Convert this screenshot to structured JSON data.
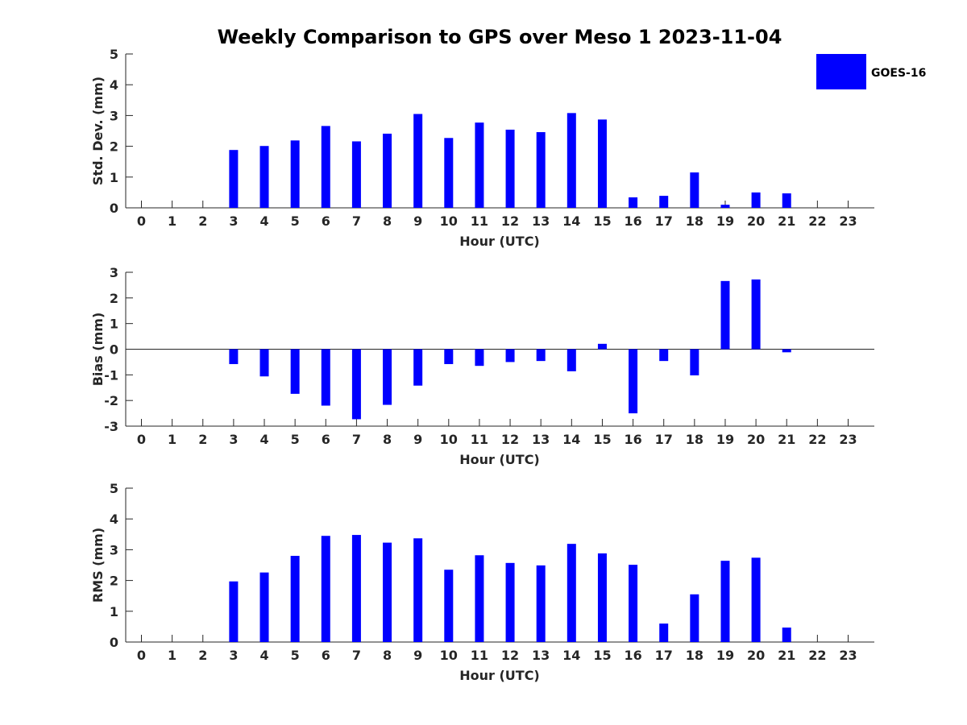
{
  "chart_data": [
    {
      "type": "bar",
      "title": "Weekly Comparison to GPS over Meso 1 2023-11-04",
      "xlabel": "Hour (UTC)",
      "ylabel": "Std. Dev. (mm)",
      "categories": [
        "0",
        "1",
        "2",
        "3",
        "4",
        "5",
        "6",
        "7",
        "8",
        "9",
        "10",
        "11",
        "12",
        "13",
        "14",
        "15",
        "16",
        "17",
        "18",
        "19",
        "20",
        "21",
        "22",
        "23"
      ],
      "ylim": [
        0,
        5
      ],
      "yticks": [
        "0",
        "1",
        "2",
        "3",
        "4",
        "5"
      ],
      "series": [
        {
          "name": "GOES-16",
          "color": "#0000ff",
          "values": [
            null,
            null,
            null,
            1.88,
            2.01,
            2.19,
            2.66,
            2.16,
            2.41,
            3.05,
            2.27,
            2.77,
            2.54,
            2.46,
            3.08,
            2.87,
            0.34,
            0.39,
            1.15,
            0.1,
            0.5,
            0.47,
            null,
            null
          ]
        }
      ],
      "legend": "top-right"
    },
    {
      "type": "bar",
      "xlabel": "Hour (UTC)",
      "ylabel": "Bias (mm)",
      "categories": [
        "0",
        "1",
        "2",
        "3",
        "4",
        "5",
        "6",
        "7",
        "8",
        "9",
        "10",
        "11",
        "12",
        "13",
        "14",
        "15",
        "16",
        "17",
        "18",
        "19",
        "20",
        "21",
        "22",
        "23"
      ],
      "ylim": [
        -3,
        3
      ],
      "yticks": [
        "-3",
        "-2",
        "-1",
        "0",
        "1",
        "2",
        "3"
      ],
      "zero_line": true,
      "series": [
        {
          "name": "GOES-16",
          "color": "#0000ff",
          "values": [
            null,
            null,
            null,
            -0.58,
            -1.06,
            -1.74,
            -2.2,
            -2.73,
            -2.17,
            -1.42,
            -0.58,
            -0.65,
            -0.5,
            -0.46,
            -0.86,
            0.21,
            -2.5,
            -0.46,
            -1.02,
            2.66,
            2.72,
            -0.12,
            null,
            null
          ]
        }
      ]
    },
    {
      "type": "bar",
      "xlabel": "Hour (UTC)",
      "ylabel": "RMS (mm)",
      "categories": [
        "0",
        "1",
        "2",
        "3",
        "4",
        "5",
        "6",
        "7",
        "8",
        "9",
        "10",
        "11",
        "12",
        "13",
        "14",
        "15",
        "16",
        "17",
        "18",
        "19",
        "20",
        "21",
        "22",
        "23"
      ],
      "ylim": [
        0,
        5
      ],
      "yticks": [
        "0",
        "1",
        "2",
        "3",
        "4",
        "5"
      ],
      "series": [
        {
          "name": "GOES-16",
          "color": "#0000ff",
          "values": [
            null,
            null,
            null,
            1.97,
            2.26,
            2.8,
            3.45,
            3.48,
            3.23,
            3.37,
            2.35,
            2.82,
            2.57,
            2.49,
            3.19,
            2.88,
            2.51,
            0.6,
            1.55,
            2.64,
            2.74,
            0.47,
            null,
            null
          ]
        }
      ]
    }
  ]
}
